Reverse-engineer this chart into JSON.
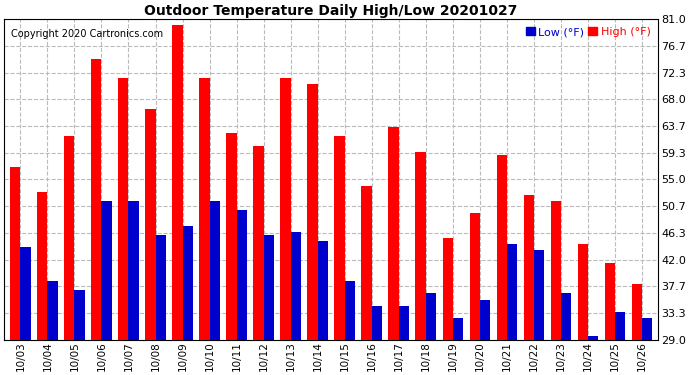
{
  "title": "Outdoor Temperature Daily High/Low 20201027",
  "copyright": "Copyright 2020 Cartronics.com",
  "legend_low_label": "Low",
  "legend_high_label": "High",
  "legend_unit": " (°F)",
  "dates": [
    "10/03",
    "10/04",
    "10/05",
    "10/06",
    "10/07",
    "10/08",
    "10/09",
    "10/10",
    "10/11",
    "10/12",
    "10/13",
    "10/14",
    "10/15",
    "10/16",
    "10/17",
    "10/18",
    "10/19",
    "10/20",
    "10/21",
    "10/22",
    "10/23",
    "10/24",
    "10/25",
    "10/26"
  ],
  "high": [
    57.0,
    53.0,
    62.0,
    74.5,
    71.5,
    66.5,
    80.0,
    71.5,
    62.5,
    60.5,
    71.5,
    70.5,
    62.0,
    54.0,
    63.5,
    59.5,
    45.5,
    49.5,
    59.0,
    52.5,
    51.5,
    44.5,
    41.5,
    38.0
  ],
  "low": [
    44.0,
    38.5,
    37.0,
    51.5,
    51.5,
    46.0,
    47.5,
    51.5,
    50.0,
    46.0,
    46.5,
    45.0,
    38.5,
    34.5,
    34.5,
    36.5,
    32.5,
    35.5,
    44.5,
    43.5,
    36.5,
    29.5,
    33.5,
    32.5
  ],
  "high_color": "#ff0000",
  "low_color": "#0000cc",
  "bg_color": "#ffffff",
  "grid_color": "#bbbbbb",
  "ymin": 29.0,
  "ymax": 81.0,
  "yticks": [
    29.0,
    33.3,
    37.7,
    42.0,
    46.3,
    50.7,
    55.0,
    59.3,
    63.7,
    68.0,
    72.3,
    76.7,
    81.0
  ],
  "title_fontsize": 10,
  "copyright_fontsize": 7,
  "tick_fontsize": 8,
  "bar_width": 0.38
}
